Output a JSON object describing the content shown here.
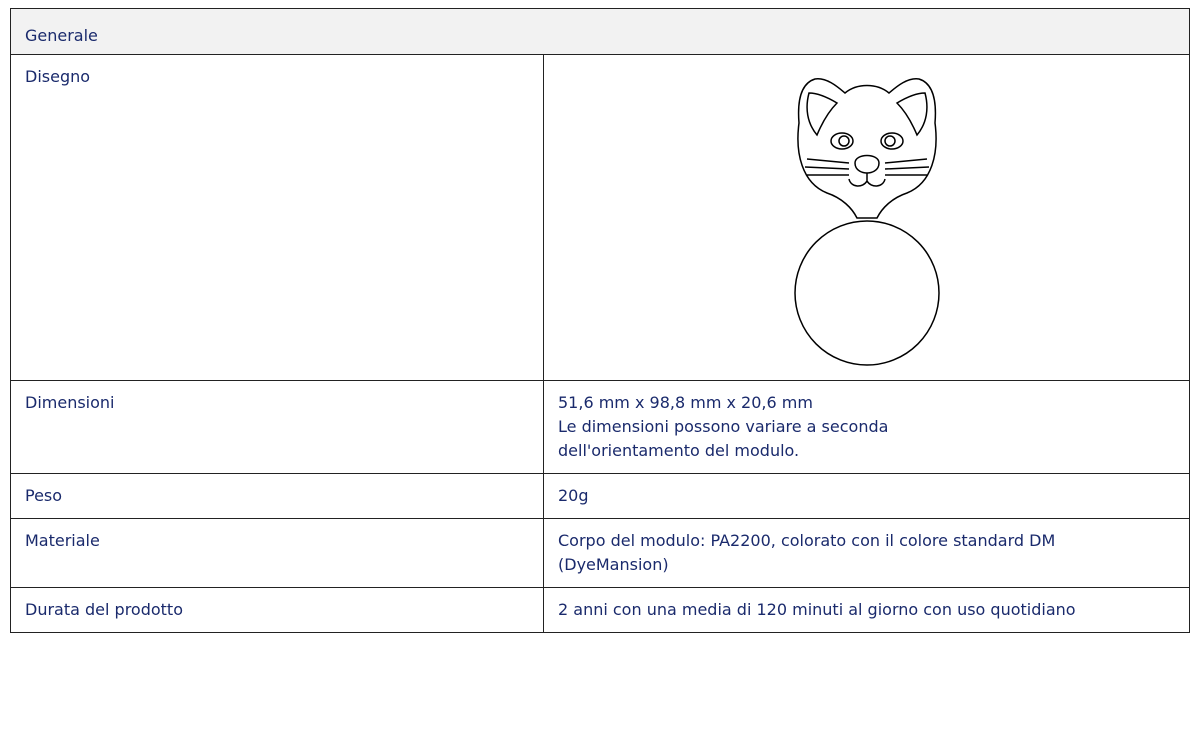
{
  "table": {
    "header": "Generale",
    "rows": [
      [
        "Disegno"
      ],
      [
        "Dimensioni",
        "51,6 mm x 98,8 mm x 20,6 mm",
        "Le dimensioni possono variare a seconda dell'orientamento del modulo."
      ],
      [
        "Peso",
        "20g"
      ],
      [
        "Materiale",
        "Corpo del modulo: PA2200, colorato con il colore standard DM (DyeMansion)"
      ],
      [
        "Durata del prodotto",
        "2 anni con una media di 120 minuti al giorno con uso quotidiano"
      ]
    ]
  }
}
